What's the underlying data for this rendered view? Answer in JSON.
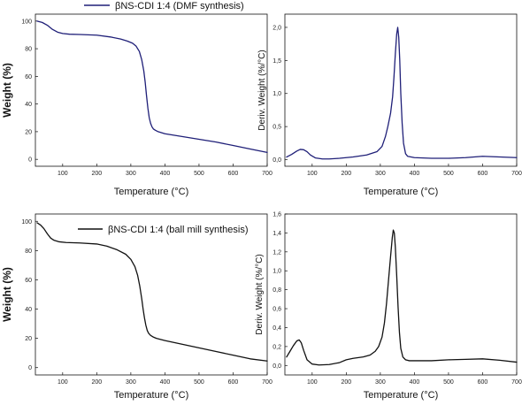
{
  "chart_data": [
    {
      "id": "tga-dmf",
      "type": "line",
      "xlabel": "Temperature (°C)",
      "ylabel": "Weight (%)",
      "xlim": [
        20,
        700
      ],
      "ylim": [
        -5,
        105
      ],
      "xticks": [
        100,
        200,
        300,
        400,
        500,
        600,
        700
      ],
      "yticks": [
        0,
        20,
        40,
        60,
        80,
        100
      ],
      "legend_position": "top",
      "color": "#1f1f78",
      "series": [
        {
          "name": "βNS-CDI 1:4 (DMF synthesis)",
          "x": [
            25,
            40,
            55,
            70,
            85,
            100,
            120,
            150,
            200,
            240,
            270,
            290,
            305,
            315,
            325,
            332,
            338,
            342,
            346,
            350,
            354,
            358,
            362,
            366,
            372,
            380,
            400,
            450,
            500,
            550,
            600,
            650,
            700
          ],
          "y": [
            100,
            99,
            97,
            94,
            92,
            91,
            90.5,
            90.3,
            89.8,
            88.5,
            87,
            85.5,
            84,
            82,
            78,
            72,
            64,
            56,
            46,
            37,
            30,
            26,
            23.5,
            22,
            21,
            20,
            18.5,
            16.5,
            14.5,
            12.5,
            10,
            7.5,
            5
          ]
        }
      ]
    },
    {
      "id": "dtg-dmf",
      "type": "line",
      "xlabel": "Temperature (°C)",
      "ylabel": "Deriv. Weight (%/°C)",
      "xlim": [
        20,
        700
      ],
      "ylim": [
        -0.1,
        2.2
      ],
      "xticks": [
        100,
        200,
        300,
        400,
        500,
        600,
        700
      ],
      "yticks": [
        0,
        0.5,
        1,
        1.5,
        2
      ],
      "ytick_labels": [
        "0,0",
        "0,5",
        "1,0",
        "1,5",
        "2,0"
      ],
      "color": "#1f1f78",
      "series": [
        {
          "x": [
            25,
            40,
            55,
            65,
            75,
            85,
            95,
            110,
            130,
            150,
            180,
            220,
            260,
            290,
            305,
            315,
            322,
            330,
            336,
            340,
            344,
            348,
            351,
            354,
            357,
            360,
            364,
            368,
            374,
            380,
            400,
            450,
            500,
            550,
            600,
            650,
            700
          ],
          "y": [
            0.04,
            0.08,
            0.13,
            0.155,
            0.15,
            0.12,
            0.07,
            0.025,
            0.01,
            0.01,
            0.02,
            0.04,
            0.07,
            0.12,
            0.2,
            0.35,
            0.5,
            0.7,
            0.95,
            1.25,
            1.6,
            1.9,
            2.0,
            1.85,
            1.5,
            1.0,
            0.55,
            0.25,
            0.09,
            0.05,
            0.03,
            0.02,
            0.02,
            0.03,
            0.05,
            0.04,
            0.03
          ]
        }
      ]
    },
    {
      "id": "tga-ballmill",
      "type": "line",
      "xlabel": "Temperature (°C)",
      "ylabel": "Weight (%)",
      "xlim": [
        20,
        700
      ],
      "ylim": [
        -5,
        105
      ],
      "xticks": [
        100,
        200,
        300,
        400,
        500,
        600,
        700
      ],
      "yticks": [
        0,
        20,
        40,
        60,
        80,
        100
      ],
      "legend_position": "top",
      "color": "#111111",
      "series": [
        {
          "name": "βNS-CDI 1:4 (ball mill synthesis)",
          "x": [
            25,
            35,
            45,
            55,
            65,
            75,
            90,
            110,
            150,
            200,
            230,
            260,
            285,
            300,
            312,
            320,
            326,
            332,
            336,
            340,
            344,
            348,
            352,
            358,
            365,
            375,
            400,
            450,
            500,
            550,
            600,
            650,
            700
          ],
          "y": [
            99,
            97.5,
            95,
            91.5,
            88.5,
            87,
            86,
            85.5,
            85.2,
            84.5,
            83,
            80.5,
            77.5,
            74,
            69,
            63,
            56,
            47,
            40,
            34,
            29,
            25.5,
            23.5,
            22,
            21,
            20,
            18.5,
            16,
            13.5,
            11,
            8.5,
            6,
            4.5
          ]
        }
      ]
    },
    {
      "id": "dtg-ballmill",
      "type": "line",
      "xlabel": "Temperature (°C)",
      "ylabel": "Deriv. Weight (%/°C)",
      "xlim": [
        20,
        700
      ],
      "ylim": [
        -0.1,
        1.6
      ],
      "xticks": [
        100,
        200,
        300,
        400,
        500,
        600,
        700
      ],
      "yticks": [
        0,
        0.2,
        0.4,
        0.6,
        0.8,
        1,
        1.2,
        1.4,
        1.6
      ],
      "ytick_labels": [
        "0,0",
        "0,2",
        "0,4",
        "0,6",
        "0,8",
        "1,0",
        "1,2",
        "1,4",
        "1,6"
      ],
      "color": "#111111",
      "series": [
        {
          "x": [
            25,
            35,
            45,
            55,
            62,
            68,
            75,
            85,
            100,
            120,
            150,
            180,
            200,
            220,
            250,
            270,
            285,
            295,
            305,
            312,
            318,
            324,
            330,
            335,
            338,
            341,
            344,
            348,
            352,
            356,
            360,
            366,
            374,
            385,
            400,
            450,
            500,
            550,
            600,
            650,
            700
          ],
          "y": [
            0.09,
            0.15,
            0.21,
            0.26,
            0.27,
            0.24,
            0.16,
            0.06,
            0.015,
            0.005,
            0.01,
            0.03,
            0.06,
            0.075,
            0.09,
            0.11,
            0.15,
            0.2,
            0.3,
            0.45,
            0.65,
            0.9,
            1.15,
            1.35,
            1.43,
            1.4,
            1.25,
            0.95,
            0.62,
            0.35,
            0.18,
            0.09,
            0.06,
            0.05,
            0.05,
            0.05,
            0.06,
            0.065,
            0.07,
            0.055,
            0.035
          ]
        }
      ]
    }
  ]
}
